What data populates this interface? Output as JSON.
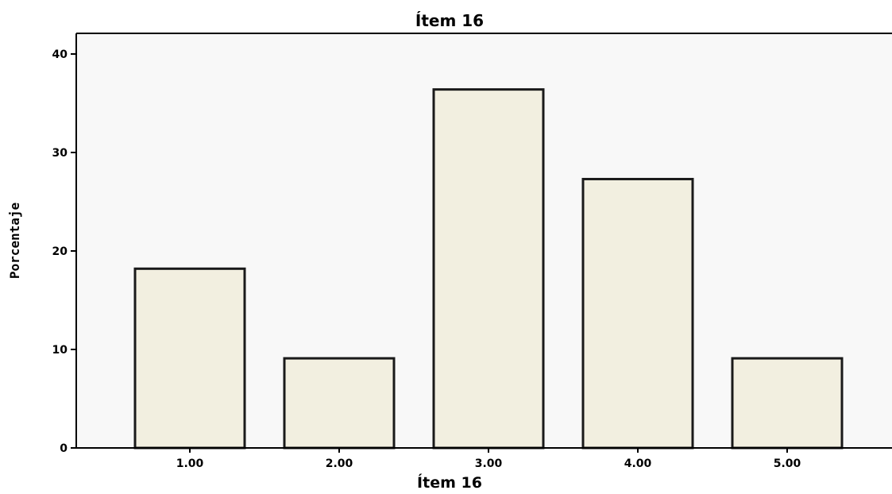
{
  "chart_data": {
    "type": "bar",
    "title": "Ítem 16",
    "xlabel": "Ítem 16",
    "ylabel": "Porcentaje",
    "categories": [
      "1.00",
      "2.00",
      "3.00",
      "4.00",
      "5.00"
    ],
    "values": [
      18.2,
      9.1,
      36.4,
      27.3,
      9.1
    ],
    "ylim": [
      0,
      40
    ],
    "yticks": [
      0,
      10,
      20,
      30,
      40
    ],
    "grid": false,
    "legend": "none",
    "colors": {
      "bar_fill": "#f2efe0",
      "bar_stroke": "#1a1a1a",
      "plot_background": "#f8f8f8",
      "axis": "#000000"
    }
  }
}
